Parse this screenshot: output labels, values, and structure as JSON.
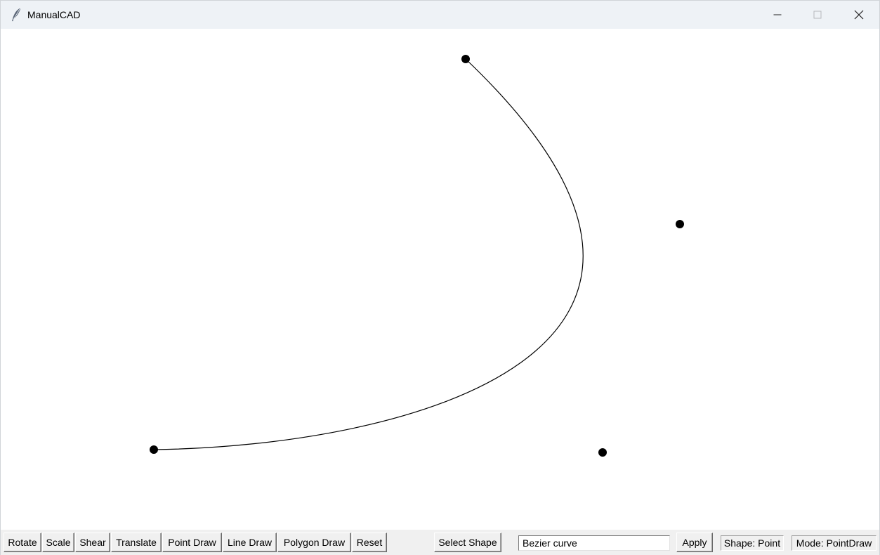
{
  "window": {
    "title": "ManualCAD",
    "app_icon": "feather-icon",
    "controls": [
      "minimize-icon",
      "maximize-icon",
      "close-icon"
    ]
  },
  "canvas": {
    "shape": "Bezier curve",
    "control_point_color": "#000000",
    "curve_color": "#000000"
  },
  "toolbar": {
    "buttons": [
      "Rotate",
      "Scale",
      "Shear",
      "Translate",
      "Point Draw",
      "Line Draw",
      "Polygon Draw",
      "Reset"
    ],
    "select_shape_label": "Select Shape",
    "shape_input_value": "Bezier curve",
    "apply_label": "Apply",
    "shape_status": "Shape: Point",
    "mode_status": "Mode: PointDraw"
  },
  "colors": {
    "titlebar_bg": "#eef2f6",
    "canvas_bg": "#ffffff",
    "toolbar_bg": "#f0f0f0"
  }
}
